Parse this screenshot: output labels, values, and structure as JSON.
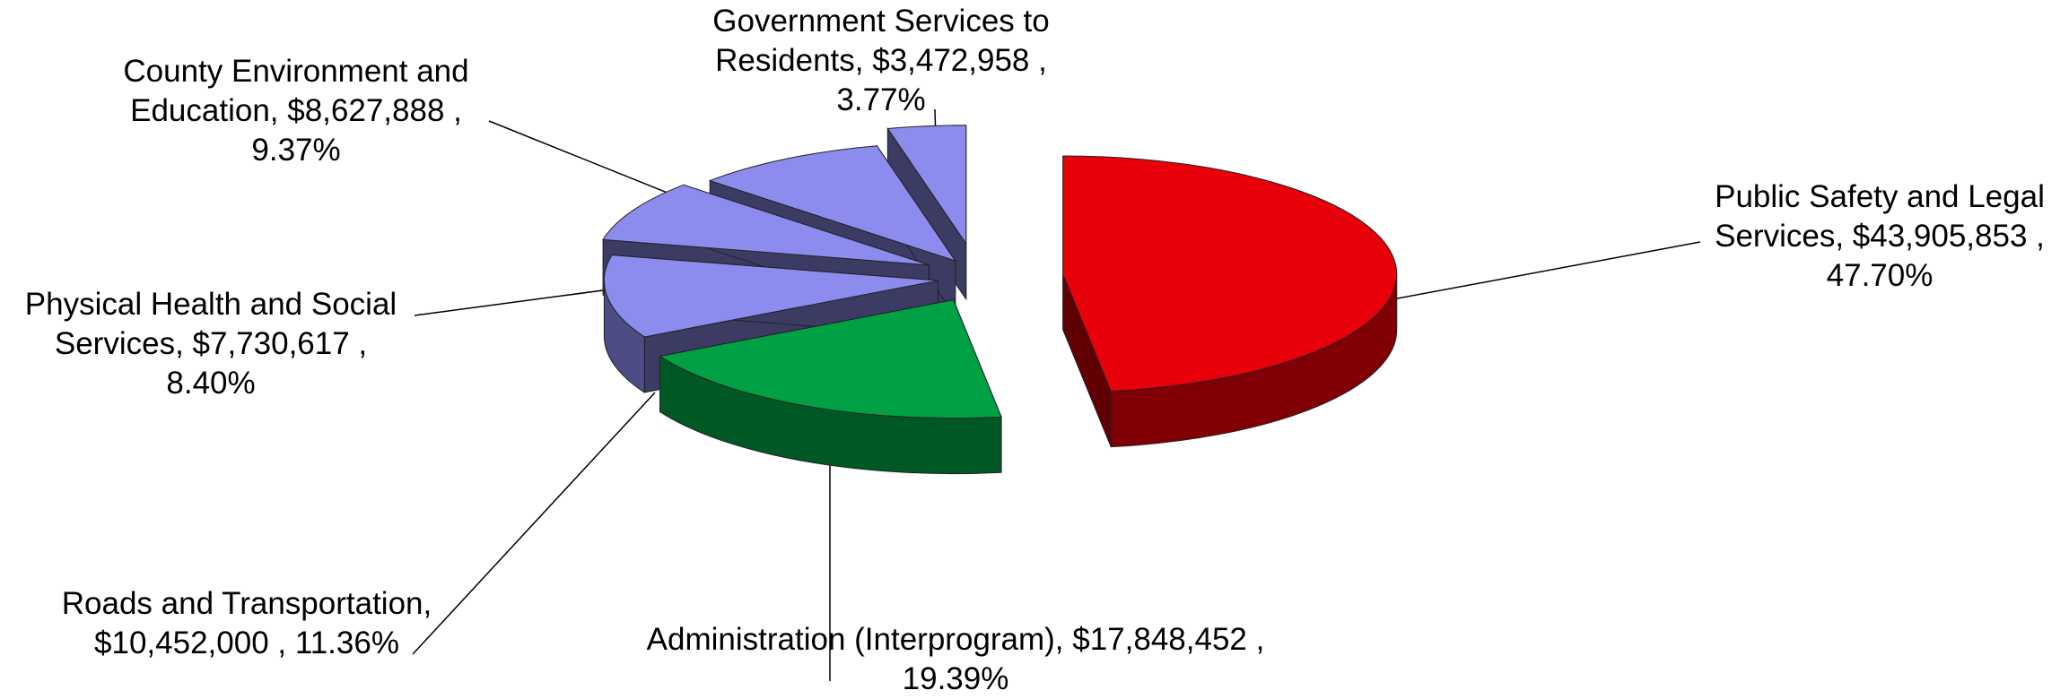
{
  "chart_data": {
    "type": "pie",
    "title": "",
    "currency": "$",
    "slices": [
      {
        "name": "Public Safety and Legal Services",
        "value": 43905853,
        "percent": 47.7,
        "color": "#e8000a",
        "exploded": true
      },
      {
        "name": "Administration (Interprogram)",
        "value": 17848452,
        "percent": 19.39,
        "color": "#00a044",
        "exploded": true
      },
      {
        "name": "Roads and Transportation",
        "value": 10452000,
        "percent": 11.36,
        "color": "#8c8cee",
        "exploded": true
      },
      {
        "name": "Physical Health and Social Services",
        "value": 7730617,
        "percent": 8.4,
        "color": "#8c8cee",
        "exploded": true
      },
      {
        "name": "County Environment and Education",
        "value": 8627888,
        "percent": 9.37,
        "color": "#8c8cee",
        "exploded": true
      },
      {
        "name": "Government Services to Residents",
        "value": 3472958,
        "percent": 3.77,
        "color": "#8c8cee",
        "exploded": true
      }
    ],
    "labels": [
      {
        "lines": [
          "Public Safety and Legal",
          "Services,  $43,905,853 ,",
          "47.70%"
        ]
      },
      {
        "lines": [
          "Administration (Interprogram),  $17,848,452 ,",
          "19.39%"
        ]
      },
      {
        "lines": [
          "Roads and Transportation,",
          "$10,452,000 , 11.36%"
        ]
      },
      {
        "lines": [
          "Physical Health and Social",
          "Services,  $7,730,617 ,",
          "8.40%"
        ]
      },
      {
        "lines": [
          "County Environment and",
          "Education,  $8,627,888 ,",
          "9.37%"
        ]
      },
      {
        "lines": [
          "Government Services to",
          "Residents,  $3,472,958 ,",
          "3.77%"
        ]
      }
    ]
  }
}
